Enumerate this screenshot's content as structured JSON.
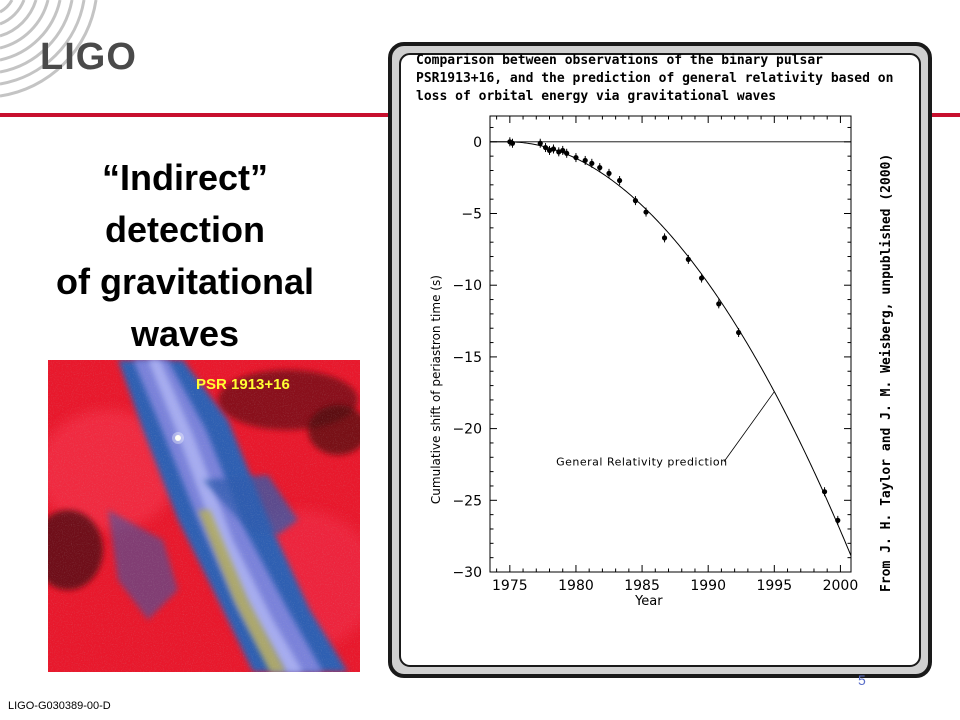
{
  "logo": {
    "text": "LIGO"
  },
  "slide": {
    "title_lines": [
      "“Indirect”",
      "detection",
      "of gravitational",
      "waves"
    ],
    "footer_id": "LIGO-G030389-00-D",
    "page_number": "5",
    "accent_color": "#c8102e"
  },
  "sky_image": {
    "label": "PSR 1913+16"
  },
  "figure": {
    "caption_lines": [
      "Comparison between observations of the binary pulsar",
      "PSR1913+16,  and the prediction of general relativity based on",
      "loss of orbital energy via gravitational waves"
    ],
    "credit": "From  J. H. Taylor and J. M. Weisberg, unpublished (2000)"
  },
  "chart_data": {
    "type": "scatter",
    "xlabel": "Year",
    "ylabel": "Cumulative shift of periastron time (s)",
    "xlim": [
      1973.5,
      2000.8
    ],
    "ylim": [
      -30,
      1.8
    ],
    "x_ticks": [
      1975,
      1980,
      1985,
      1990,
      1995,
      2000
    ],
    "y_ticks": [
      0,
      -5,
      -10,
      -15,
      -20,
      -25,
      -30
    ],
    "annotation": "General Relativity prediction",
    "points": [
      {
        "x": 1975.0,
        "y": 0.0
      },
      {
        "x": 1975.2,
        "y": -0.1
      },
      {
        "x": 1977.3,
        "y": -0.1
      },
      {
        "x": 1977.7,
        "y": -0.4
      },
      {
        "x": 1978.0,
        "y": -0.6
      },
      {
        "x": 1978.3,
        "y": -0.5
      },
      {
        "x": 1978.7,
        "y": -0.7
      },
      {
        "x": 1979.0,
        "y": -0.6
      },
      {
        "x": 1979.3,
        "y": -0.8
      },
      {
        "x": 1980.0,
        "y": -1.1
      },
      {
        "x": 1980.7,
        "y": -1.3
      },
      {
        "x": 1981.2,
        "y": -1.5
      },
      {
        "x": 1981.8,
        "y": -1.8
      },
      {
        "x": 1982.5,
        "y": -2.2
      },
      {
        "x": 1983.3,
        "y": -2.7
      },
      {
        "x": 1984.5,
        "y": -4.1
      },
      {
        "x": 1985.3,
        "y": -4.9
      },
      {
        "x": 1986.7,
        "y": -6.7
      },
      {
        "x": 1988.5,
        "y": -8.2
      },
      {
        "x": 1989.5,
        "y": -9.5
      },
      {
        "x": 1990.8,
        "y": -11.3
      },
      {
        "x": 1992.3,
        "y": -13.3
      },
      {
        "x": 1998.8,
        "y": -24.4
      },
      {
        "x": 1999.8,
        "y": -26.4
      }
    ]
  }
}
